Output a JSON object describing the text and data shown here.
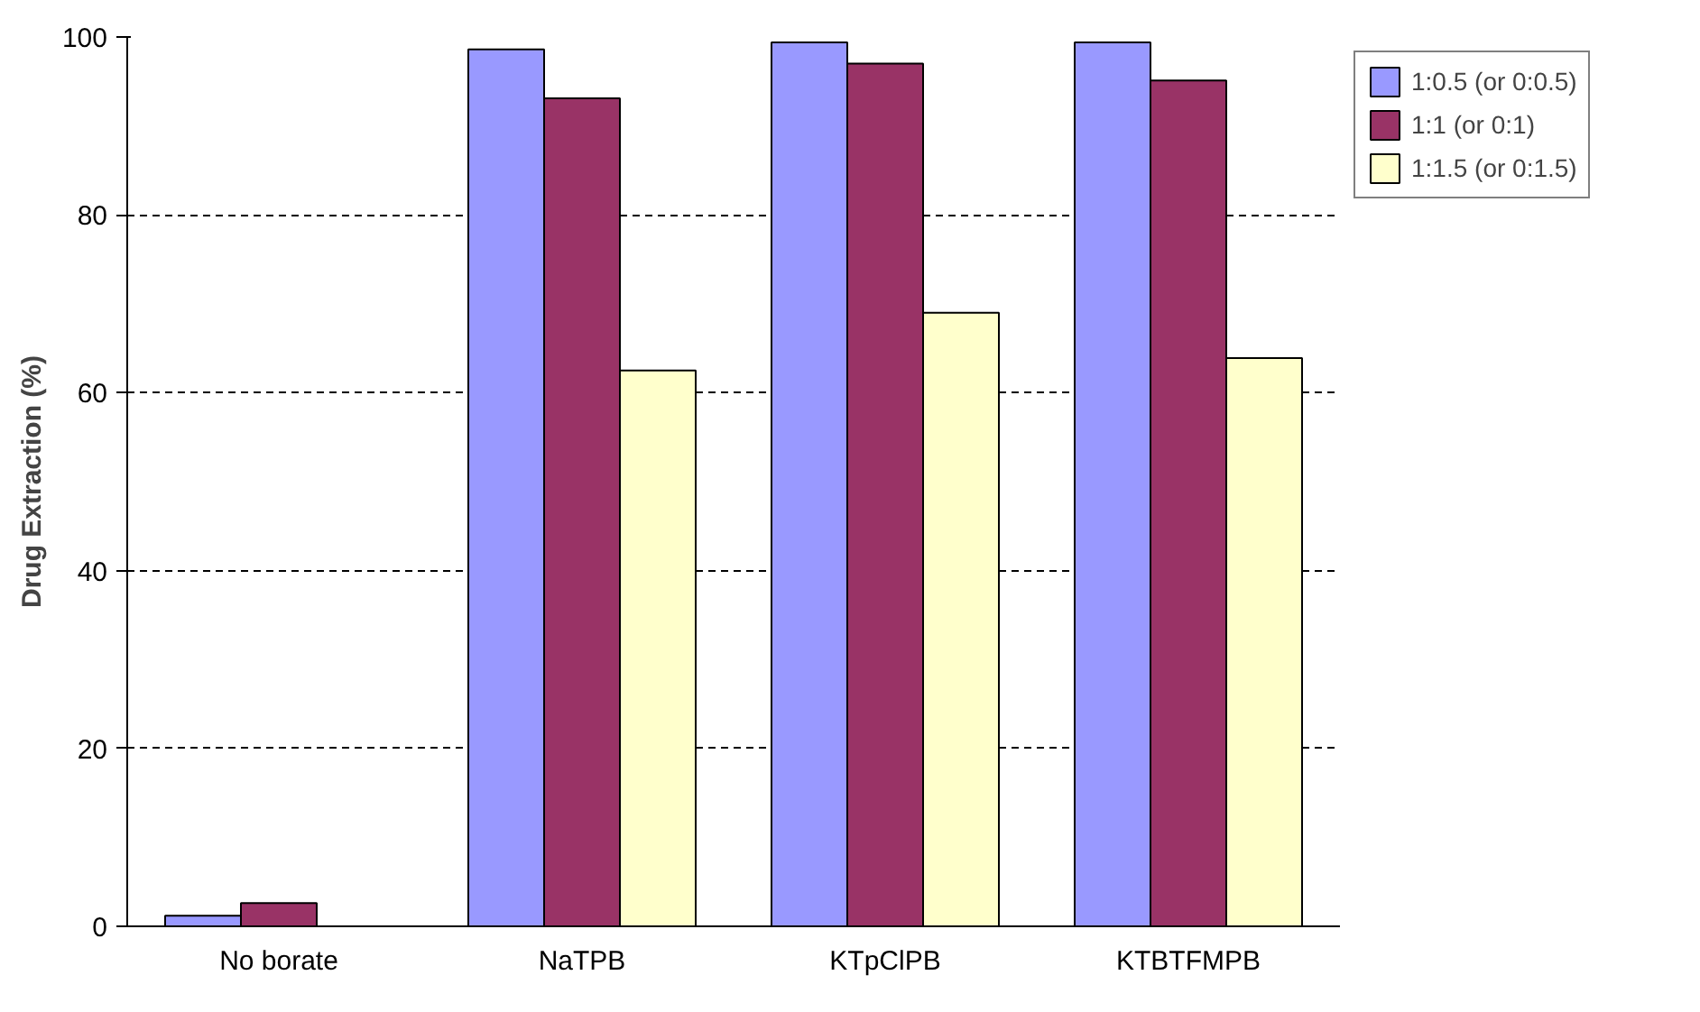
{
  "chart_data": {
    "type": "bar",
    "ylabel": "Drug Extraction (%)",
    "categories": [
      "No borate",
      "NaTPB",
      "KTpClPB",
      "KTBTFMPB"
    ],
    "series": [
      {
        "name": "1:0.5 (or 0:0.5)",
        "color": "#9999ff",
        "values": [
          1.2,
          98.6,
          99.4,
          99.4
        ]
      },
      {
        "name": "1:1 (or 0:1)",
        "color": "#993366",
        "values": [
          2.6,
          93.1,
          97.0,
          95.1
        ]
      },
      {
        "name": "1:1.5 (or 0:1.5)",
        "color": "#ffffcc",
        "values": [
          null,
          62.5,
          69.0,
          63.9
        ]
      }
    ],
    "ylim": [
      0,
      100
    ],
    "yticks": [
      0,
      20,
      40,
      60,
      80,
      100
    ],
    "grid": "y",
    "legend": "right"
  }
}
